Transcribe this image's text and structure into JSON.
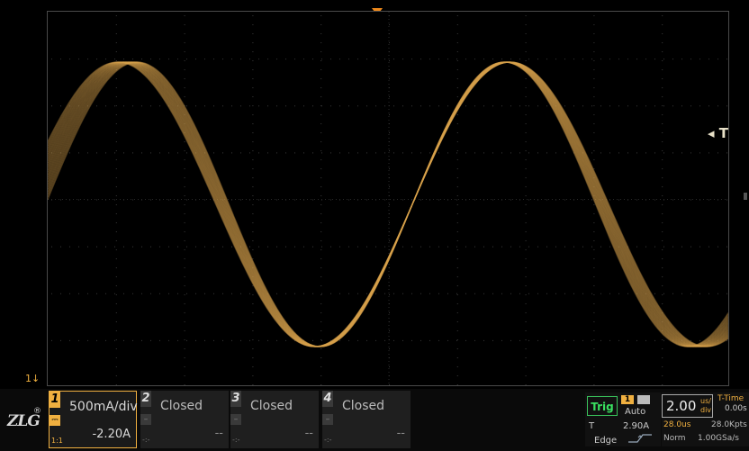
{
  "brand": {
    "logo_text": "ZLG",
    "reg_mark": "®"
  },
  "markers": {
    "trigger_level_label": "◂ T",
    "ch1_ground_label": "1↓"
  },
  "colors": {
    "ch1": "#f0b040",
    "trace": "#d9a24e",
    "trig_accent": "#39e060",
    "grid": "#3a3a3a",
    "trig_pos": "#f08a1c"
  },
  "channels": [
    {
      "num": "1",
      "scale": "500mA/div",
      "offset": "-2.20A",
      "probe": "1:1",
      "coupling_icon": "dc-coupling-icon",
      "active": true
    },
    {
      "num": "2",
      "scale": "Closed",
      "offset": "--",
      "probe": "-:-",
      "active": false
    },
    {
      "num": "3",
      "scale": "Closed",
      "offset": "--",
      "probe": "-:-",
      "active": false
    },
    {
      "num": "4",
      "scale": "Closed",
      "offset": "--",
      "probe": "-:-",
      "active": false
    }
  ],
  "trigger": {
    "label": "Trig",
    "source": "1",
    "mode": "Auto",
    "t_label": "T",
    "level": "2.90A",
    "type": "Edge",
    "slope_icon": "rising-edge-icon"
  },
  "timebase": {
    "div_value": "2.00",
    "div_unit_top": "us/",
    "div_unit_bottom": "div",
    "t_time_label": "T-Time",
    "t_time_value": "0.00s",
    "delay": "28.0us",
    "record_length": "28.0Kpts",
    "acq_mode": "Norm",
    "sample_rate": "1.00GSa/s"
  }
}
